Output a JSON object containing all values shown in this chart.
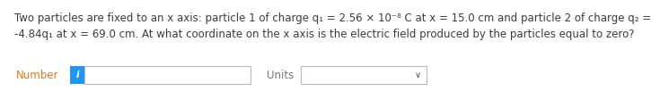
{
  "bg_color": "#ffffff",
  "text_line1": "Two particles are fixed to an x axis: particle 1 of charge q₁ = 2.56 × 10⁻⁸ C at x = 15.0 cm and particle 2 of charge q₂ =",
  "text_line2": "-4.84q₁ at x = 69.0 cm. At what coordinate on the x axis is the electric field produced by the particles equal to zero?",
  "text_color": "#3c3c3c",
  "number_label": "Number",
  "number_label_color": "#e07820",
  "units_label": "Units",
  "units_label_color": "#777777",
  "info_icon_color": "#2196f3",
  "info_icon_text": "i",
  "input_box_color": "#ffffff",
  "input_border_color": "#bbbbbb",
  "dropdown_border_color": "#bbbbbb",
  "chevron": "∨",
  "font_size_text": 8.5,
  "font_size_labels": 8.5,
  "font_size_icon": 7.5
}
